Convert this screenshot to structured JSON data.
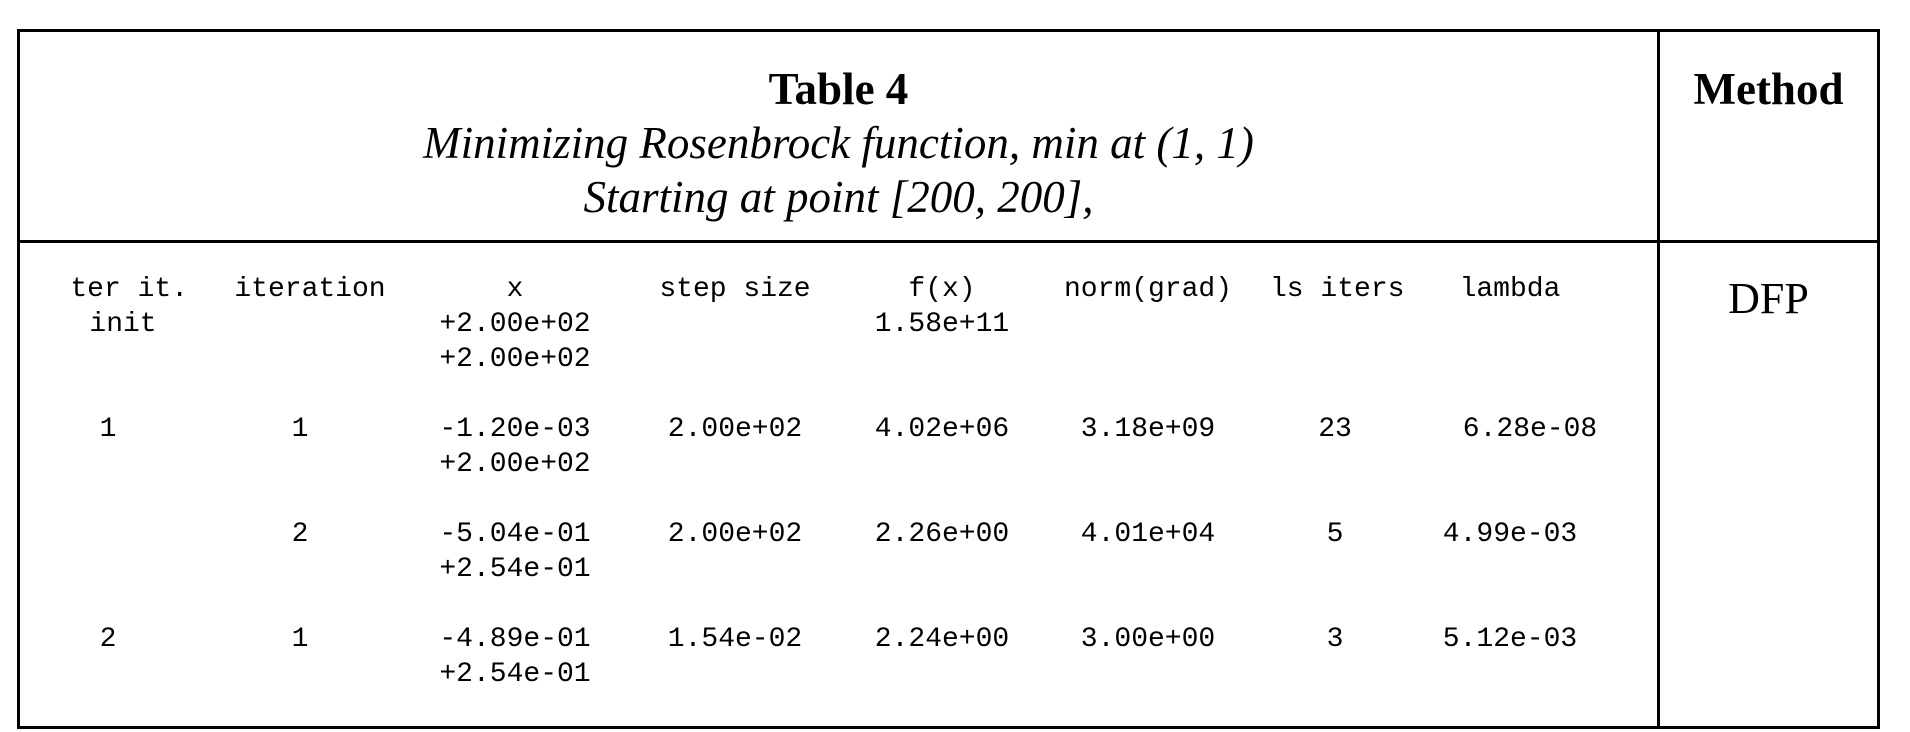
{
  "caption": {
    "title": "Table 4",
    "line1": "Minimizing Rosenbrock function, min at (1, 1)",
    "line2": "Starting at point [200, 200],"
  },
  "method": {
    "header": "Method",
    "value": "DFP"
  },
  "headers": {
    "outer": "ter it.",
    "iteration": "iteration",
    "x": "x",
    "step": "step size",
    "fx": "f(x)",
    "norm": "norm(grad)",
    "ls": "ls iters",
    "lambda": "lambda"
  },
  "rows": [
    {
      "outer": "init",
      "iteration": "",
      "x1": "+2.00e+02",
      "x2": "+2.00e+02",
      "step": "",
      "fx": "1.58e+11",
      "norm": "",
      "ls": "",
      "lambda": ""
    },
    {
      "outer": "1",
      "iteration": "1",
      "x1": "-1.20e-03",
      "x2": "+2.00e+02",
      "step": "2.00e+02",
      "fx": "4.02e+06",
      "norm": "3.18e+09",
      "ls": "23",
      "lambda": "6.28e-08"
    },
    {
      "outer": "",
      "iteration": "2",
      "x1": "-5.04e-01",
      "x2": "+2.54e-01",
      "step": "2.00e+02",
      "fx": "2.26e+00",
      "norm": "4.01e+04",
      "ls": "5",
      "lambda": "4.99e-03"
    },
    {
      "outer": "2",
      "iteration": "1",
      "x1": "-4.89e-01",
      "x2": "+2.54e-01",
      "step": "1.54e-02",
      "fx": "2.24e+00",
      "norm": "3.00e+00",
      "ls": "3",
      "lambda": "5.12e-03"
    }
  ]
}
